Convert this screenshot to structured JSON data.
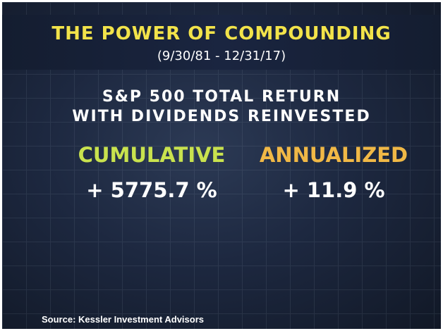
{
  "header": {
    "title": "THE POWER OF COMPOUNDING",
    "subtitle": "(9/30/81 - 12/31/17)"
  },
  "heading": {
    "line1": "S&P 500 TOTAL RETURN",
    "line2": "WITH DIVIDENDS REINVESTED"
  },
  "metrics": [
    {
      "label": "CUMULATIVE",
      "value": "+ 5775.7 %"
    },
    {
      "label": "ANNUALIZED",
      "value": "+ 11.9 %"
    }
  ],
  "footer": {
    "source": "Source: Kessler Investment Advisors"
  }
}
